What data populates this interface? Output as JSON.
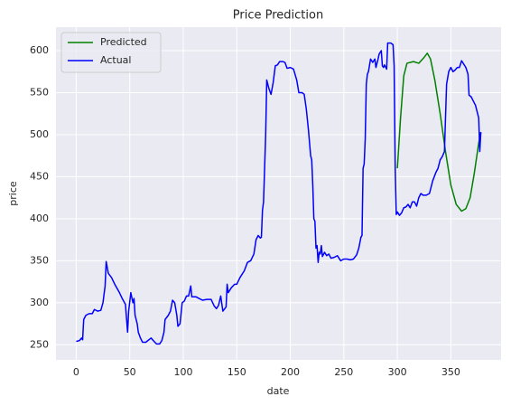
{
  "chart_data": {
    "type": "line",
    "title": "Price Prediction",
    "x_label": "date",
    "y_label": "price",
    "xlim": [
      -18.9,
      396.9
    ],
    "xticks": [
      0,
      50,
      100,
      150,
      200,
      250,
      300,
      350
    ],
    "ylim": [
      232,
      628
    ],
    "yticks": [
      250,
      300,
      350,
      400,
      450,
      500,
      550,
      600
    ],
    "grid": true,
    "legend": "upper left",
    "series": [
      {
        "name": "Predicted",
        "color": "#008000",
        "x": [
          300,
          303,
          306,
          309,
          315,
          320,
          325,
          328,
          331,
          335,
          340,
          345,
          350,
          355,
          360,
          364,
          368,
          372,
          376,
          378
        ],
        "values": [
          460,
          520,
          570,
          585,
          587,
          585,
          592,
          597,
          590,
          565,
          525,
          480,
          440,
          417,
          409,
          412,
          425,
          455,
          490,
          503
        ]
      },
      {
        "name": "Actual",
        "color": "#0000ff",
        "x": [
          0,
          3,
          5,
          6,
          7,
          9,
          12,
          15,
          17,
          20,
          23,
          25,
          27,
          28,
          30,
          33,
          36,
          40,
          43,
          46,
          48,
          49,
          51,
          53,
          54,
          55,
          57,
          58,
          60,
          62,
          65,
          68,
          70,
          72,
          75,
          78,
          80,
          82,
          83,
          86,
          88,
          90,
          92,
          94,
          95,
          97,
          99,
          101,
          103,
          105,
          107,
          108,
          112,
          115,
          118,
          122,
          126,
          129,
          131,
          133,
          135,
          137,
          140,
          141,
          142,
          145,
          148,
          150,
          153,
          157,
          160,
          163,
          166,
          168,
          170,
          172,
          173,
          174,
          175,
          177,
          178,
          180,
          182,
          184,
          186,
          188,
          190,
          193,
          195,
          197,
          200,
          203,
          206,
          208,
          211,
          213,
          215,
          217,
          219,
          220,
          221,
          222,
          223,
          224,
          225,
          226,
          227,
          228,
          229,
          230,
          232,
          234,
          236,
          238,
          241,
          244,
          247,
          250,
          253,
          256,
          259,
          262,
          264,
          266,
          267,
          268,
          269,
          270,
          271,
          272,
          273,
          275,
          277,
          279,
          280,
          282,
          283,
          285,
          286,
          287,
          288,
          290,
          291,
          294,
          296,
          297,
          298,
          299,
          300,
          302,
          304,
          306,
          308,
          310,
          312,
          314,
          316,
          318,
          320,
          322,
          324,
          327,
          330,
          333,
          336,
          338,
          340,
          342,
          344,
          345,
          346,
          348,
          350,
          352,
          354,
          356,
          358,
          360,
          362,
          364,
          366,
          367,
          369,
          371,
          373,
          376,
          377,
          378
        ],
        "values": [
          254,
          255,
          258,
          256,
          280,
          285,
          287,
          287,
          292,
          290,
          291,
          300,
          320,
          349,
          335,
          330,
          322,
          313,
          305,
          298,
          265,
          290,
          312,
          300,
          305,
          285,
          275,
          265,
          258,
          253,
          253,
          256,
          258,
          255,
          251,
          251,
          255,
          265,
          280,
          285,
          290,
          303,
          300,
          285,
          272,
          275,
          300,
          302,
          308,
          308,
          320,
          307,
          307,
          305,
          303,
          304,
          304,
          296,
          293,
          297,
          308,
          290,
          295,
          322,
          312,
          318,
          322,
          322,
          330,
          338,
          348,
          350,
          358,
          375,
          380,
          377,
          378,
          410,
          420,
          500,
          565,
          555,
          548,
          562,
          582,
          583,
          587,
          587,
          586,
          579,
          580,
          578,
          565,
          550,
          550,
          548,
          530,
          505,
          475,
          470,
          440,
          400,
          397,
          365,
          368,
          348,
          360,
          358,
          368,
          355,
          360,
          356,
          358,
          353,
          354,
          356,
          350,
          352,
          352,
          351,
          352,
          357,
          365,
          378,
          380,
          460,
          465,
          495,
          560,
          572,
          575,
          590,
          586,
          590,
          580,
          590,
          596,
          600,
          582,
          580,
          583,
          578,
          609,
          609,
          607,
          582,
          460,
          405,
          408,
          404,
          407,
          413,
          414,
          417,
          413,
          420,
          420,
          415,
          425,
          430,
          428,
          428,
          430,
          445,
          455,
          460,
          470,
          474,
          480,
          520,
          560,
          575,
          580,
          575,
          577,
          580,
          580,
          588,
          584,
          580,
          572,
          547,
          545,
          540,
          535,
          520,
          480,
          503
        ]
      }
    ]
  }
}
